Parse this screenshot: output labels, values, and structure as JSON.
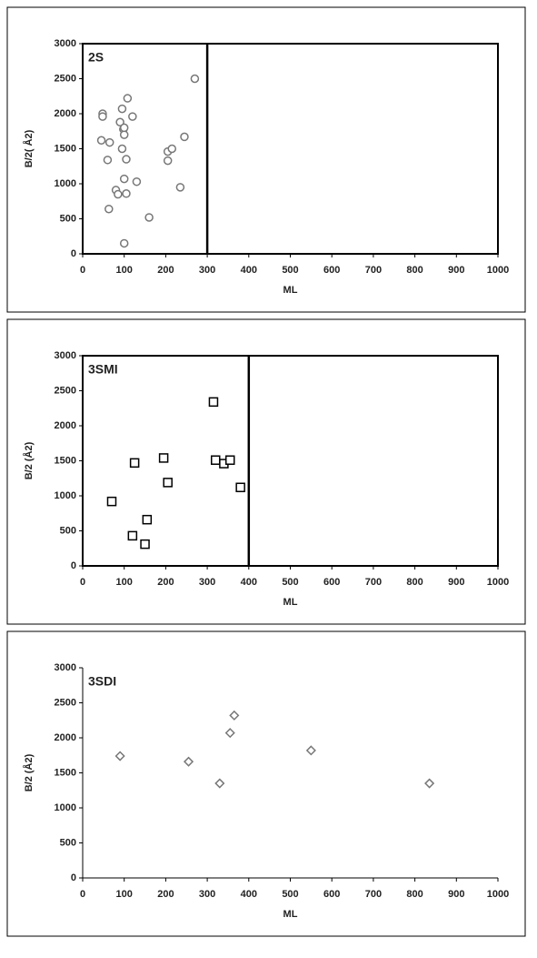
{
  "chart_data": [
    {
      "type": "scatter",
      "title": "2S",
      "xlabel": "ML",
      "ylabel": "B/2( Å2)",
      "marker": "circle",
      "color": "#777777",
      "frame": true,
      "vline": 300,
      "xlim": [
        0,
        1000
      ],
      "ylim": [
        0,
        3000
      ],
      "xticks": [
        0,
        100,
        200,
        300,
        400,
        500,
        600,
        700,
        800,
        900,
        1000
      ],
      "yticks": [
        0,
        500,
        1000,
        1500,
        2000,
        2500,
        3000
      ],
      "x": [
        48,
        48,
        45,
        65,
        60,
        63,
        80,
        85,
        90,
        95,
        98,
        100,
        95,
        100,
        108,
        105,
        120,
        100,
        105,
        130,
        100,
        160,
        205,
        205,
        215,
        235,
        245,
        270
      ],
      "y": [
        2000,
        1960,
        1620,
        1590,
        1340,
        640,
        910,
        850,
        1880,
        2070,
        1780,
        1700,
        1500,
        1800,
        2220,
        1350,
        1960,
        1070,
        860,
        1030,
        150,
        520,
        1460,
        1330,
        1500,
        950,
        1670,
        2500
      ]
    },
    {
      "type": "scatter",
      "title": "3SMI",
      "xlabel": "ML",
      "ylabel": "B/2 (Å2)",
      "marker": "square",
      "color": "#000000",
      "frame": true,
      "vline": 400,
      "xlim": [
        0,
        1000
      ],
      "ylim": [
        0,
        3000
      ],
      "xticks": [
        0,
        100,
        200,
        300,
        400,
        500,
        600,
        700,
        800,
        900,
        1000
      ],
      "yticks": [
        0,
        500,
        1000,
        1500,
        2000,
        2500,
        3000
      ],
      "x": [
        70,
        120,
        125,
        150,
        155,
        195,
        205,
        315,
        320,
        340,
        355,
        380
      ],
      "y": [
        920,
        430,
        1470,
        310,
        660,
        1540,
        1190,
        2340,
        1510,
        1460,
        1510,
        1120
      ]
    },
    {
      "type": "scatter",
      "title": "3SDI",
      "xlabel": "ML",
      "ylabel": "B/2 (Å2)",
      "marker": "diamond",
      "color": "#777777",
      "frame": false,
      "xlim": [
        0,
        1000
      ],
      "ylim": [
        0,
        3000
      ],
      "xticks": [
        0,
        100,
        200,
        300,
        400,
        500,
        600,
        700,
        800,
        900,
        1000
      ],
      "yticks": [
        0,
        500,
        1000,
        1500,
        2000,
        2500,
        3000
      ],
      "x": [
        90,
        255,
        330,
        355,
        365,
        550,
        835
      ],
      "y": [
        1740,
        1660,
        1350,
        2070,
        2320,
        1820,
        1350
      ]
    }
  ]
}
